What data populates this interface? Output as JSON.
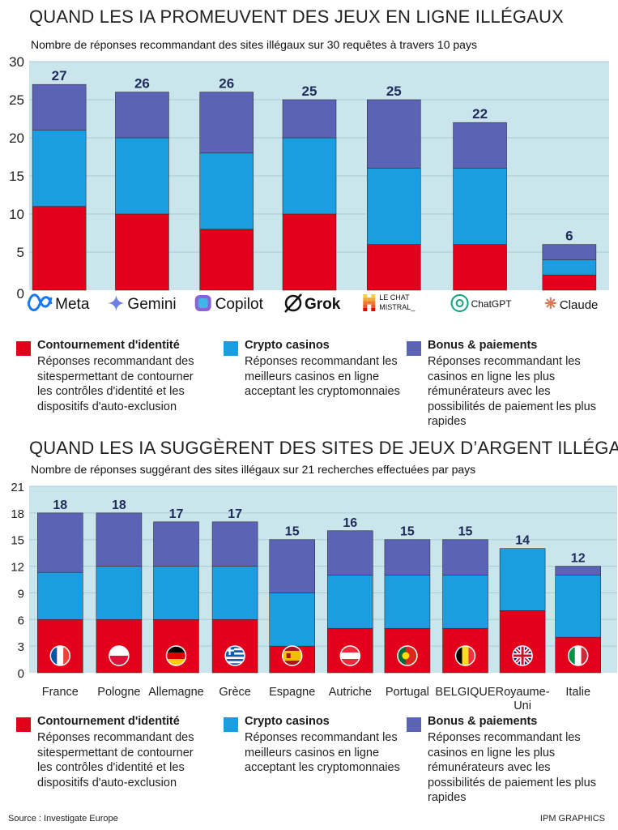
{
  "colors": {
    "identite": "#e3001b",
    "crypto": "#1a9ee0",
    "bonus": "#5a63b5",
    "plot_bg": "#cbe5ec",
    "grid": "#a9ccd6"
  },
  "section1": {
    "title": "QUAND LES IA PROMEUVENT DES JEUX EN LIGNE ILLÉGAUX",
    "subtitle": "Nombre de réponses recommandant des sites illégaux sur 30 requêtes à travers 10 pays"
  },
  "section2": {
    "title": "QUAND LES IA SUGGÈRENT DES SITES DE JEUX D’ARGENT ILLÉGAUX",
    "subtitle": "Nombre de réponses suggérant des sites illégaux sur 21 recherches effectuées par pays"
  },
  "legend": {
    "identite_title": "Contournement d'identité",
    "identite_desc": "Réponses recommandant des sitespermettant de contourner les contrôles d'identité et les dispositifs d'auto-exclusion",
    "crypto_title": "Crypto casinos",
    "crypto_desc": "Réponses recommandant les meilleurs casinos en ligne acceptant les cryptomonnaies",
    "bonus_title": "Bonus & paiements",
    "bonus_desc": "Réponses recommandant les casinos en ligne les plus rémunérateurs avec les possibilités de paiement les plus rapides"
  },
  "footer": {
    "source": "Source : Investigate Europe",
    "credit": "IPM GRAPHICS"
  },
  "chart_data": [
    {
      "type": "bar",
      "stacked": true,
      "title": "QUAND LES IA PROMEUVENT DES JEUX EN LIGNE ILLÉGAUX",
      "categories": [
        "Meta",
        "Gemini",
        "Copilot",
        "Grok",
        "LE CHAT MISTRAL_",
        "ChatGPT",
        "Claude"
      ],
      "category_logo_icons": [
        "meta-logo-icon",
        "gemini-logo-icon",
        "copilot-logo-icon",
        "grok-logo-icon",
        "mistral-logo-icon",
        "chatgpt-logo-icon",
        "claude-logo-icon"
      ],
      "series": [
        {
          "name": "Contournement d'identité",
          "values": [
            11,
            10,
            8,
            10,
            6,
            6,
            2
          ]
        },
        {
          "name": "Crypto casinos",
          "values": [
            10,
            10,
            10,
            10,
            10,
            10,
            2
          ]
        },
        {
          "name": "Bonus & paiements",
          "values": [
            6,
            6,
            8,
            5,
            9,
            6,
            2
          ]
        }
      ],
      "totals": [
        27,
        26,
        26,
        25,
        25,
        22,
        6
      ],
      "yticks": [
        0,
        5,
        10,
        15,
        20,
        25,
        30
      ],
      "ylim": [
        0,
        30
      ],
      "grid": true,
      "xlabel": "",
      "ylabel": ""
    },
    {
      "type": "bar",
      "stacked": true,
      "title": "QUAND LES IA SUGGÈRENT DES SITES DE JEUX D’ARGENT ILLÉGAUX",
      "categories": [
        "France",
        "Pologne",
        "Allemagne",
        "Grèce",
        "Espagne",
        "Autriche",
        "Portugal",
        "BELGIQUE",
        "Royaume-Uni",
        "Italie"
      ],
      "category_labels_lines": [
        [
          "France"
        ],
        [
          "Pologne"
        ],
        [
          "Allemagne"
        ],
        [
          "Grèce"
        ],
        [
          "Espagne"
        ],
        [
          "Autriche"
        ],
        [
          "Portugal"
        ],
        [
          "BELGIQUE"
        ],
        [
          "Royaume-",
          "Uni"
        ],
        [
          "Italie"
        ]
      ],
      "flag_icons": [
        "flag-france-icon",
        "flag-pologne-icon",
        "flag-allemagne-icon",
        "flag-grece-icon",
        "flag-espagne-icon",
        "flag-autriche-icon",
        "flag-portugal-icon",
        "flag-belgique-icon",
        "flag-royaume-uni-icon",
        "flag-italie-icon"
      ],
      "series": [
        {
          "name": "Contournement d'identité",
          "values": [
            6,
            6,
            6,
            6,
            3,
            5,
            5,
            5,
            7,
            4
          ]
        },
        {
          "name": "Crypto casinos",
          "values": [
            5.3,
            6,
            6,
            6,
            6,
            6,
            6,
            6,
            7,
            7
          ]
        },
        {
          "name": "Bonus & paiements",
          "values": [
            6.7,
            6,
            5,
            5,
            6,
            5,
            4,
            4,
            0,
            1
          ]
        }
      ],
      "totals": [
        18,
        18,
        17,
        17,
        15,
        16,
        15,
        15,
        14,
        12
      ],
      "yticks": [
        0,
        3,
        6,
        9,
        12,
        15,
        18,
        21
      ],
      "ylim": [
        0,
        21
      ],
      "grid": true,
      "xlabel": "",
      "ylabel": ""
    }
  ]
}
